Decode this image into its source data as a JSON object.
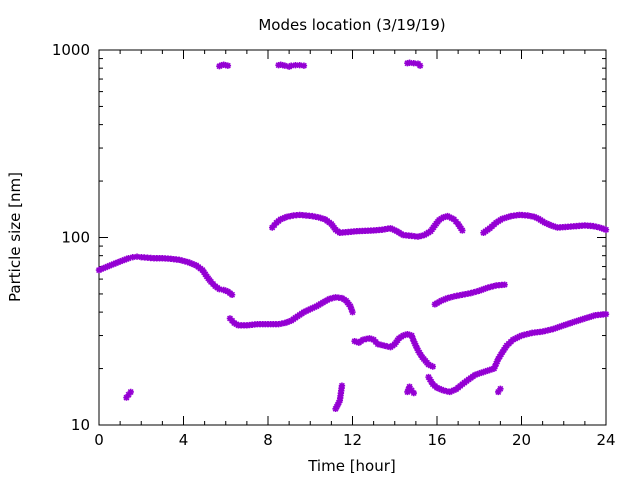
{
  "chart_data": {
    "type": "scatter",
    "title": "Modes location (3/19/19)",
    "xlabel": "Time [hour]",
    "ylabel": "Particle size [nm]",
    "xlim": [
      0,
      24
    ],
    "ylim": [
      10,
      1000
    ],
    "yscale": "log",
    "grid": false,
    "legend": "none",
    "marker_color": "#9400d3",
    "x_ticks": [
      0,
      4,
      8,
      12,
      16,
      20,
      24
    ],
    "y_ticks": [
      10,
      100,
      1000
    ],
    "x_tick_labels": [
      "0",
      "4",
      "8",
      "12",
      "16",
      "20",
      "24"
    ],
    "y_tick_labels": [
      "10",
      "100",
      "1000"
    ],
    "series": [
      {
        "points": [
          [
            0.0,
            67
          ],
          [
            0.2,
            68.5
          ],
          [
            0.4,
            70
          ],
          [
            0.6,
            71.5
          ],
          [
            0.8,
            73
          ],
          [
            1.0,
            74.5
          ],
          [
            1.2,
            76
          ],
          [
            1.4,
            77.5
          ],
          [
            1.6,
            78.5
          ],
          [
            1.8,
            79
          ],
          [
            2.0,
            78.5
          ],
          [
            2.3,
            78
          ],
          [
            2.6,
            77.5
          ],
          [
            3.0,
            77.5
          ],
          [
            3.4,
            77
          ],
          [
            3.8,
            76
          ],
          [
            4.2,
            74
          ],
          [
            4.6,
            71
          ],
          [
            4.9,
            67
          ],
          [
            5.1,
            62
          ],
          [
            5.3,
            58
          ],
          [
            5.5,
            55
          ],
          [
            5.7,
            53
          ],
          [
            5.9,
            52.5
          ],
          [
            6.1,
            51.5
          ],
          [
            6.3,
            49.5
          ]
        ]
      },
      {
        "points": [
          [
            6.2,
            37
          ],
          [
            6.4,
            35
          ],
          [
            6.6,
            34
          ],
          [
            7.0,
            34
          ],
          [
            7.5,
            34.5
          ],
          [
            8.0,
            34.5
          ],
          [
            8.5,
            34.5
          ],
          [
            8.8,
            35
          ],
          [
            9.1,
            36
          ],
          [
            9.4,
            38
          ],
          [
            9.7,
            40
          ],
          [
            10.0,
            41.5
          ],
          [
            10.3,
            43
          ],
          [
            10.6,
            45
          ],
          [
            10.9,
            47
          ],
          [
            11.2,
            48
          ],
          [
            11.5,
            47.5
          ],
          [
            11.7,
            46
          ],
          [
            11.9,
            43
          ],
          [
            12.0,
            40
          ]
        ]
      },
      {
        "points": [
          [
            12.1,
            28
          ],
          [
            12.3,
            27.5
          ],
          [
            12.5,
            28.5
          ],
          [
            12.8,
            29
          ],
          [
            13.0,
            28.5
          ],
          [
            13.2,
            27
          ],
          [
            13.5,
            26.5
          ],
          [
            13.8,
            26
          ],
          [
            14.0,
            27
          ],
          [
            14.2,
            29
          ],
          [
            14.4,
            30
          ],
          [
            14.6,
            30.5
          ],
          [
            14.8,
            30
          ],
          [
            14.9,
            28
          ],
          [
            15.1,
            25
          ],
          [
            15.3,
            23
          ],
          [
            15.6,
            21
          ],
          [
            15.8,
            20.5
          ]
        ]
      },
      {
        "points": [
          [
            15.6,
            18
          ],
          [
            15.8,
            16.5
          ],
          [
            16.0,
            15.8
          ],
          [
            16.3,
            15.3
          ],
          [
            16.6,
            15
          ],
          [
            16.9,
            15.5
          ],
          [
            17.2,
            16.5
          ],
          [
            17.5,
            17.5
          ],
          [
            17.8,
            18.5
          ],
          [
            18.1,
            19
          ],
          [
            18.4,
            19.5
          ],
          [
            18.7,
            20
          ],
          [
            18.9,
            22.5
          ],
          [
            19.1,
            24.5
          ],
          [
            19.3,
            26.5
          ],
          [
            19.6,
            28.5
          ],
          [
            20.0,
            30
          ],
          [
            20.5,
            31
          ],
          [
            21.0,
            31.5
          ],
          [
            21.5,
            32.5
          ],
          [
            22.0,
            34
          ],
          [
            22.5,
            35.5
          ],
          [
            23.0,
            37
          ],
          [
            23.5,
            38.5
          ],
          [
            24.0,
            39
          ]
        ]
      },
      {
        "points": [
          [
            15.9,
            44
          ],
          [
            16.2,
            46
          ],
          [
            16.5,
            47.5
          ],
          [
            16.8,
            48.5
          ],
          [
            17.2,
            49.5
          ],
          [
            17.6,
            50.5
          ],
          [
            18.0,
            52
          ],
          [
            18.4,
            54
          ],
          [
            18.8,
            55.5
          ],
          [
            19.2,
            56
          ]
        ]
      },
      {
        "points": [
          [
            8.2,
            113
          ],
          [
            8.4,
            120
          ],
          [
            8.6,
            125
          ],
          [
            8.9,
            129
          ],
          [
            9.2,
            131
          ],
          [
            9.5,
            132
          ],
          [
            9.8,
            131
          ],
          [
            10.1,
            130
          ],
          [
            10.4,
            128
          ],
          [
            10.7,
            125
          ],
          [
            11.0,
            118
          ],
          [
            11.2,
            110
          ],
          [
            11.4,
            106
          ],
          [
            11.8,
            107
          ],
          [
            12.2,
            108
          ],
          [
            12.6,
            108.5
          ],
          [
            13.0,
            109
          ],
          [
            13.4,
            110
          ],
          [
            13.8,
            112
          ],
          [
            14.1,
            108
          ],
          [
            14.4,
            103
          ],
          [
            14.8,
            102
          ],
          [
            15.1,
            101
          ],
          [
            15.4,
            103
          ],
          [
            15.7,
            108
          ],
          [
            15.9,
            116
          ],
          [
            16.1,
            124
          ],
          [
            16.3,
            128
          ],
          [
            16.5,
            130
          ],
          [
            16.8,
            125
          ],
          [
            17.0,
            118
          ],
          [
            17.2,
            109
          ]
        ]
      },
      {
        "points": [
          [
            18.2,
            106
          ],
          [
            18.5,
            112
          ],
          [
            18.8,
            120
          ],
          [
            19.1,
            126
          ],
          [
            19.5,
            130
          ],
          [
            19.9,
            132
          ],
          [
            20.3,
            131
          ],
          [
            20.6,
            129
          ],
          [
            20.8,
            126
          ],
          [
            21.1,
            120
          ],
          [
            21.4,
            116
          ],
          [
            21.7,
            113
          ],
          [
            22.2,
            114
          ],
          [
            22.6,
            115
          ],
          [
            23.0,
            116
          ],
          [
            23.4,
            115
          ],
          [
            23.7,
            113
          ],
          [
            24.0,
            110
          ]
        ]
      },
      {
        "points": [
          [
            5.7,
            820
          ],
          [
            5.8,
            830
          ],
          [
            5.9,
            835
          ],
          [
            6.0,
            830
          ],
          [
            6.1,
            825
          ],
          [
            8.5,
            830
          ],
          [
            8.6,
            835
          ],
          [
            8.7,
            830
          ],
          [
            8.8,
            825
          ],
          [
            9.0,
            815
          ],
          [
            9.1,
            825
          ],
          [
            9.3,
            830
          ],
          [
            9.5,
            830
          ],
          [
            9.7,
            825
          ],
          [
            14.6,
            850
          ],
          [
            14.7,
            855
          ],
          [
            14.9,
            850
          ],
          [
            15.1,
            845
          ],
          [
            15.2,
            825
          ]
        ]
      },
      {
        "points": [
          [
            1.3,
            14.0
          ],
          [
            1.4,
            14.5
          ],
          [
            1.5,
            15.0
          ],
          [
            11.2,
            12.2
          ],
          [
            11.3,
            12.8
          ],
          [
            11.4,
            13.5
          ],
          [
            11.5,
            16.2
          ],
          [
            14.6,
            15.0
          ],
          [
            14.7,
            16.0
          ],
          [
            14.8,
            15.3
          ],
          [
            14.9,
            14.8
          ],
          [
            18.9,
            15.0
          ],
          [
            19.0,
            15.6
          ]
        ]
      }
    ]
  }
}
